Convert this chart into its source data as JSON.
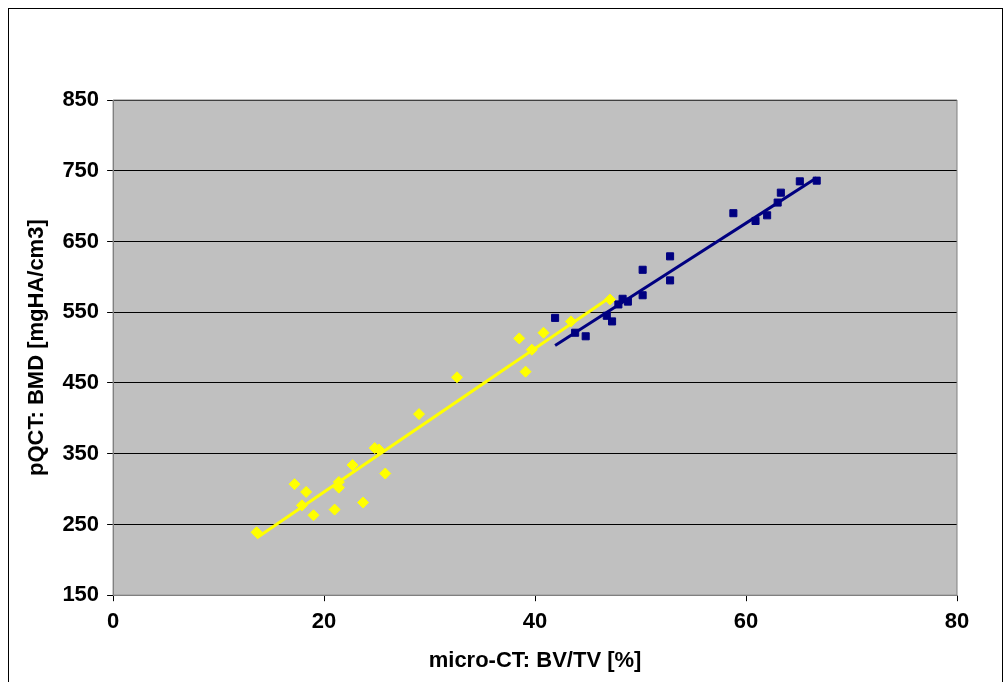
{
  "chart_data": {
    "type": "scatter",
    "xlabel": "micro-CT: BV/TV [%]",
    "ylabel": "pQCT: BMD [mgHA/cm3]",
    "xlim": [
      0,
      80
    ],
    "xticks": [
      0,
      20,
      40,
      60,
      80
    ],
    "ylim": [
      150,
      850
    ],
    "yticks": [
      150,
      250,
      350,
      450,
      550,
      650,
      750,
      850
    ],
    "grid": "y",
    "legend": false,
    "series": [
      {
        "color": "#ffff00",
        "marker": "diamond",
        "x": [
          13.6,
          17.2,
          18.3,
          17.9,
          19.0,
          21.0,
          21.4,
          21.4,
          22.7,
          23.7,
          24.8,
          25.2,
          25.8,
          29.0,
          32.6,
          38.5,
          39.1,
          39.7,
          40.8,
          43.4,
          47.1
        ],
        "values": [
          239,
          307,
          296,
          277,
          263,
          271,
          310,
          302,
          334,
          281,
          358,
          356,
          322,
          406,
          458,
          513,
          466,
          497,
          521,
          537,
          568
        ]
      },
      {
        "color": "#000080",
        "marker": "square",
        "x": [
          41.9,
          43.8,
          44.8,
          46.8,
          47.3,
          47.9,
          48.3,
          48.8,
          50.2,
          50.2,
          52.8,
          52.8,
          58.8,
          60.9,
          62.0,
          63.0,
          63.3,
          65.1,
          66.7
        ],
        "values": [
          542,
          521,
          516,
          545,
          537,
          561,
          569,
          565,
          610,
          574,
          629,
          595,
          690,
          679,
          687,
          705,
          719,
          735,
          736
        ]
      },
      {
        "type": "line",
        "color": "#ffff00",
        "marker": "none",
        "x": [
          13.6,
          47.2
        ],
        "values": [
          231,
          572
        ]
      },
      {
        "type": "line",
        "color": "#000080",
        "marker": "none",
        "x": [
          41.9,
          66.7
        ],
        "values": [
          503,
          740
        ]
      }
    ]
  }
}
